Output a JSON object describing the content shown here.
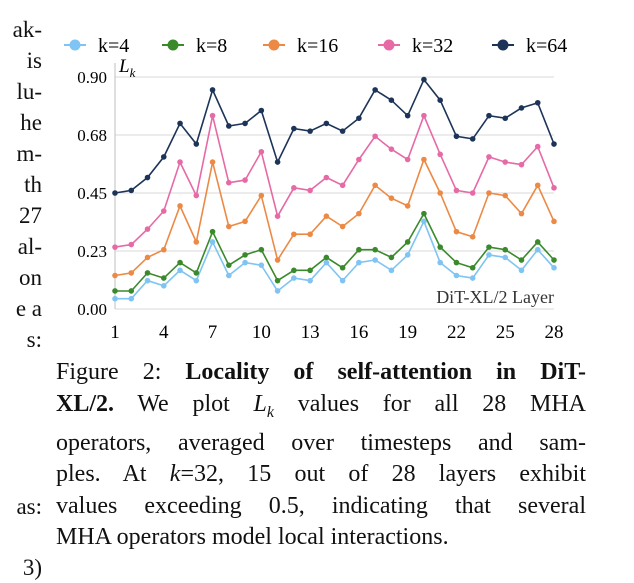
{
  "left_text_fragments": [
    "ak-",
    "is",
    "lu-",
    "he",
    "m-",
    "th",
    "27",
    "al-",
    "on",
    "e a",
    "s:",
    "as:",
    "3)"
  ],
  "caption": {
    "line1": {
      "normal": "Figure 2: ",
      "bold": "Locality of self-attention in DiT-"
    },
    "line2": {
      "bold": "XL/2.",
      "normal_a": " We plot ",
      "math": "L",
      "math_sub": "k",
      "normal_b": " values for all 28 MHA"
    },
    "line3": "operators, averaged over timesteps and sam-",
    "line4": {
      "normal_a": "ples.  At ",
      "math": "k",
      "normal_b": "=32, 15 out of 28 layers exhibit"
    },
    "line5": "values exceeding 0.5, indicating that several",
    "line6": "MHA operators model local interactions."
  },
  "chart_data": {
    "type": "line",
    "ylabel": "L",
    "ylabel_sub": "k",
    "xlabel": "DiT-XL/2 Layer",
    "ylim": [
      0.0,
      0.9
    ],
    "yticks": [
      "0.00",
      "0.23",
      "0.45",
      "0.68",
      "0.90"
    ],
    "ytick_values": [
      0.0,
      0.225,
      0.45,
      0.675,
      0.9
    ],
    "xlim": [
      1,
      28
    ],
    "xticks": [
      1,
      4,
      7,
      10,
      13,
      16,
      19,
      22,
      25,
      28
    ],
    "grid": "horizontal",
    "legend_position": "top",
    "x": [
      1,
      2,
      3,
      4,
      5,
      6,
      7,
      8,
      9,
      10,
      11,
      12,
      13,
      14,
      15,
      16,
      17,
      18,
      19,
      20,
      21,
      22,
      23,
      24,
      25,
      26,
      27,
      28
    ],
    "series": [
      {
        "name": "k=4",
        "color": "#7fc4f2",
        "values": [
          0.04,
          0.04,
          0.11,
          0.09,
          0.15,
          0.11,
          0.26,
          0.13,
          0.18,
          0.17,
          0.07,
          0.12,
          0.11,
          0.18,
          0.11,
          0.18,
          0.19,
          0.15,
          0.21,
          0.34,
          0.18,
          0.13,
          0.12,
          0.21,
          0.2,
          0.15,
          0.23,
          0.16
        ]
      },
      {
        "name": "k=8",
        "color": "#3a8a2c",
        "values": [
          0.07,
          0.07,
          0.14,
          0.12,
          0.18,
          0.14,
          0.3,
          0.17,
          0.21,
          0.23,
          0.11,
          0.15,
          0.15,
          0.2,
          0.16,
          0.23,
          0.23,
          0.2,
          0.26,
          0.37,
          0.24,
          0.18,
          0.16,
          0.24,
          0.23,
          0.19,
          0.26,
          0.19
        ]
      },
      {
        "name": "k=16",
        "color": "#ec8a45",
        "values": [
          0.13,
          0.14,
          0.2,
          0.23,
          0.4,
          0.26,
          0.57,
          0.32,
          0.34,
          0.44,
          0.19,
          0.29,
          0.29,
          0.36,
          0.32,
          0.37,
          0.48,
          0.43,
          0.4,
          0.58,
          0.45,
          0.3,
          0.28,
          0.45,
          0.44,
          0.37,
          0.48,
          0.34
        ]
      },
      {
        "name": "k=32",
        "color": "#e66aa6",
        "values": [
          0.24,
          0.25,
          0.31,
          0.38,
          0.57,
          0.44,
          0.75,
          0.49,
          0.5,
          0.61,
          0.36,
          0.47,
          0.46,
          0.51,
          0.48,
          0.58,
          0.67,
          0.62,
          0.58,
          0.75,
          0.6,
          0.46,
          0.45,
          0.59,
          0.57,
          0.56,
          0.63,
          0.47
        ]
      },
      {
        "name": "k=64",
        "color": "#1d3459",
        "values": [
          0.45,
          0.46,
          0.51,
          0.59,
          0.72,
          0.64,
          0.85,
          0.71,
          0.72,
          0.77,
          0.57,
          0.7,
          0.69,
          0.72,
          0.69,
          0.74,
          0.85,
          0.81,
          0.75,
          0.89,
          0.81,
          0.67,
          0.66,
          0.75,
          0.74,
          0.78,
          0.8,
          0.64
        ]
      }
    ]
  }
}
